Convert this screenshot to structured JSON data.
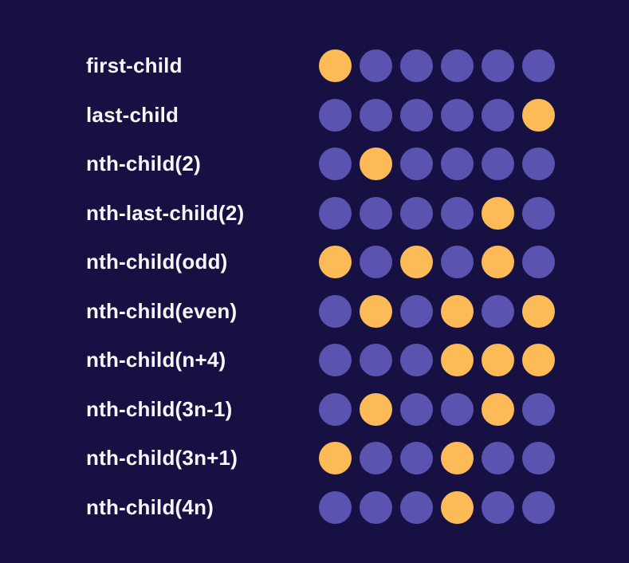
{
  "colors": {
    "background": "#161043",
    "dot": "#5b53b0",
    "dot_selected": "#fdbb58",
    "text": "#f6f5f8"
  },
  "dots_per_row": 6,
  "rows": [
    {
      "label": "first-child",
      "selected": [
        1
      ]
    },
    {
      "label": "last-child",
      "selected": [
        6
      ]
    },
    {
      "label": "nth-child(2)",
      "selected": [
        2
      ]
    },
    {
      "label": "nth-last-child(2)",
      "selected": [
        5
      ]
    },
    {
      "label": "nth-child(odd)",
      "selected": [
        1,
        3,
        5
      ]
    },
    {
      "label": "nth-child(even)",
      "selected": [
        2,
        4,
        6
      ]
    },
    {
      "label": "nth-child(n+4)",
      "selected": [
        4,
        5,
        6
      ]
    },
    {
      "label": "nth-child(3n-1)",
      "selected": [
        2,
        5
      ]
    },
    {
      "label": "nth-child(3n+1)",
      "selected": [
        1,
        4
      ]
    },
    {
      "label": "nth-child(4n)",
      "selected": [
        4
      ]
    }
  ]
}
